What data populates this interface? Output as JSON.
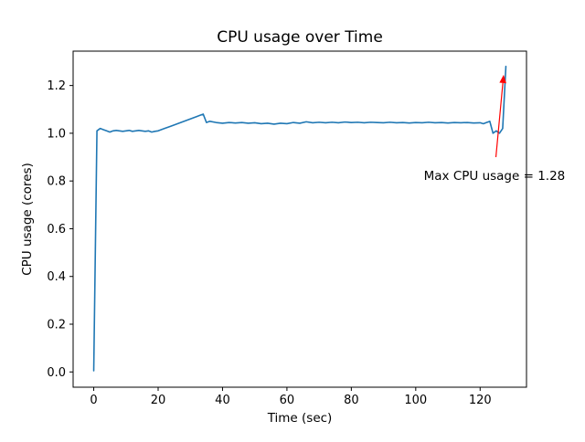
{
  "chart_data": {
    "type": "line",
    "title": "CPU usage over Time",
    "xlabel": "Time (sec)",
    "ylabel": "CPU usage (cores)",
    "xlim": [
      -6.4,
      134.4
    ],
    "ylim": [
      -0.064,
      1.344
    ],
    "xticks": [
      0,
      20,
      40,
      60,
      80,
      100,
      120
    ],
    "yticks": [
      "0.0",
      "0.2",
      "0.4",
      "0.6",
      "0.8",
      "1.0",
      "1.2"
    ],
    "grid": false,
    "legend": "none",
    "line_color": "#1f77b4",
    "series": [
      {
        "name": "CPU usage",
        "points": [
          [
            0,
            0.005
          ],
          [
            1,
            1.01
          ],
          [
            2,
            1.02
          ],
          [
            3,
            1.015
          ],
          [
            4,
            1.01
          ],
          [
            5,
            1.005
          ],
          [
            6,
            1.01
          ],
          [
            7,
            1.012
          ],
          [
            8,
            1.01
          ],
          [
            9,
            1.008
          ],
          [
            10,
            1.01
          ],
          [
            11,
            1.012
          ],
          [
            12,
            1.008
          ],
          [
            13,
            1.01
          ],
          [
            14,
            1.012
          ],
          [
            15,
            1.01
          ],
          [
            16,
            1.008
          ],
          [
            17,
            1.01
          ],
          [
            18,
            1.005
          ],
          [
            19,
            1.008
          ],
          [
            20,
            1.01
          ],
          [
            22,
            1.02
          ],
          [
            24,
            1.03
          ],
          [
            26,
            1.04
          ],
          [
            28,
            1.05
          ],
          [
            30,
            1.06
          ],
          [
            32,
            1.07
          ],
          [
            33,
            1.075
          ],
          [
            34,
            1.08
          ],
          [
            35,
            1.045
          ],
          [
            36,
            1.05
          ],
          [
            38,
            1.045
          ],
          [
            40,
            1.042
          ],
          [
            42,
            1.045
          ],
          [
            44,
            1.043
          ],
          [
            46,
            1.045
          ],
          [
            48,
            1.042
          ],
          [
            50,
            1.044
          ],
          [
            52,
            1.04
          ],
          [
            54,
            1.042
          ],
          [
            56,
            1.038
          ],
          [
            58,
            1.042
          ],
          [
            60,
            1.04
          ],
          [
            62,
            1.045
          ],
          [
            64,
            1.042
          ],
          [
            66,
            1.048
          ],
          [
            68,
            1.044
          ],
          [
            70,
            1.046
          ],
          [
            72,
            1.044
          ],
          [
            74,
            1.046
          ],
          [
            76,
            1.044
          ],
          [
            78,
            1.047
          ],
          [
            80,
            1.045
          ],
          [
            82,
            1.046
          ],
          [
            84,
            1.044
          ],
          [
            86,
            1.046
          ],
          [
            88,
            1.045
          ],
          [
            90,
            1.044
          ],
          [
            92,
            1.046
          ],
          [
            94,
            1.044
          ],
          [
            96,
            1.045
          ],
          [
            98,
            1.043
          ],
          [
            100,
            1.045
          ],
          [
            102,
            1.044
          ],
          [
            104,
            1.046
          ],
          [
            106,
            1.044
          ],
          [
            108,
            1.045
          ],
          [
            110,
            1.043
          ],
          [
            112,
            1.045
          ],
          [
            114,
            1.044
          ],
          [
            116,
            1.045
          ],
          [
            118,
            1.043
          ],
          [
            120,
            1.044
          ],
          [
            121,
            1.04
          ],
          [
            122,
            1.045
          ],
          [
            123,
            1.05
          ],
          [
            124,
            1.0
          ],
          [
            125,
            1.01
          ],
          [
            126,
            1.0
          ],
          [
            127,
            1.02
          ],
          [
            128,
            1.28
          ]
        ]
      }
    ],
    "annotation": {
      "text": "Max CPU usage = 1.28",
      "color": "#ff0000",
      "max_value": 1.28,
      "text_at": [
        102.5,
        0.805
      ],
      "arrow_from": [
        124.9,
        0.9
      ],
      "arrow_to": [
        127.3,
        1.245
      ]
    }
  }
}
